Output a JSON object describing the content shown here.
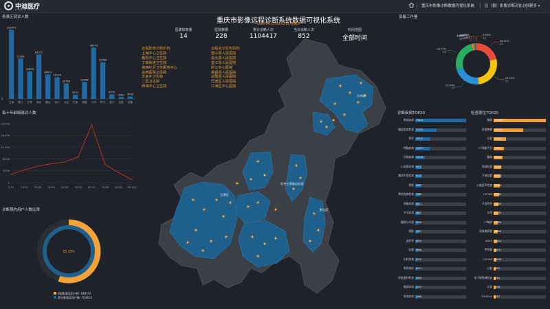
{
  "header": {
    "logo_text": "中迪医疗",
    "logo_sub": "ZHONGDI MEDICAL",
    "nav_link_1": "重庆市影像诊断数据可视化系统",
    "nav_link_2": "区（县）影像诊断对比分析",
    "more_label": "更多",
    "colors": {
      "bar": "#26292f"
    }
  },
  "district_panel": {
    "title": "各县区就诊人数",
    "ytick": "0",
    "values": [
      133047,
      77591,
      52823,
      85372,
      46973,
      41524,
      29758,
      8137,
      32598,
      98579,
      70564,
      8575,
      3560,
      4500
    ],
    "labels": [
      "江津",
      "綦江",
      "长寿",
      "渝北",
      "璧山",
      "合川",
      "大足",
      "巴南",
      "荣昌",
      "万州",
      "黔江",
      "垫江",
      "忠县",
      "武隆"
    ]
  },
  "age_panel": {
    "title": "每十年龄段就诊人数",
    "ticks": [
      "20,000",
      "16,000",
      "12,000",
      "8,000",
      "4,000",
      "0"
    ],
    "categories": [
      "0-10",
      "10-20",
      "20-30",
      "30-40",
      "40-50",
      "50-60",
      "60-70",
      "70-80",
      "80-90",
      "90-100"
    ],
    "values": [
      2800,
      4300,
      5600,
      6400,
      7000,
      8700,
      19500,
      6200,
      3400,
      1000
    ]
  },
  "donut_panel": {
    "title": "诊断预约用户人数比率",
    "center_label": "55.33%",
    "legend": [
      "B超影像类用户数: 188752",
      "累计影像类用户数: 704414"
    ],
    "percent": 55.33,
    "colors": {
      "outer": "#f2a23a",
      "inner": "#1f5f8b"
    }
  },
  "center": {
    "title": "重庆市影像远程诊断系统数据可视化系统",
    "datetime": "2020-06-12 14:02:05 星期三",
    "stats": [
      {
        "label": "医联体数量",
        "value": "14"
      },
      {
        "label": "医院数量",
        "value": "228"
      },
      {
        "label": "累计诊断人次",
        "value": "1104417"
      },
      {
        "label": "当日诊断人次",
        "value": "852"
      },
      {
        "label": "时间范围",
        "value": "全部时间"
      }
    ],
    "hospitals_left": [
      "远程影像诊断机构",
      "上海中心卫生院",
      "鑫阳中心卫生院",
      "丁家街道卫生院",
      "城西社区卫生服务中心",
      "渝西医院卫生院",
      "文家乡卫生院",
      "二圣卫生院",
      "西城中心卫生院"
    ],
    "hospitals_right": [
      "远程会诊机构机构",
      "璧山县人民医院",
      "渝北县人民医院",
      "垫江县人民医院",
      "黔江中心医院",
      "荣昌县人民医院",
      "武隆县人民医院",
      "巴南区人民医院",
      "江津区中心医院"
    ],
    "map_labels": [
      "万州区",
      "黔江区",
      "石柱土家族自治县",
      "江津区"
    ]
  },
  "equipment_panel": {
    "title": "设备工作量",
    "slices": [
      {
        "label": "DX",
        "pct": "20.01%",
        "value": 20.01,
        "color": "#e74c3c"
      },
      {
        "label": "DR",
        "pct": "25.45%",
        "value": 25.45,
        "color": "#f1c40f"
      },
      {
        "label": "CT",
        "pct": "20.99%",
        "value": 20.99,
        "color": "#2b8fd6"
      },
      {
        "label": "MR",
        "pct": "23.77%",
        "value": 23.77,
        "color": "#27ae60"
      },
      {
        "label": "MG",
        "pct": "0.2%",
        "value": 0.2,
        "color": "#8e44ad"
      },
      {
        "label": "US",
        "pct": "1.66%",
        "value": 1.66,
        "color": "#e67e22"
      },
      {
        "label": "ES",
        "pct": "1.36%",
        "value": 1.36,
        "color": "#16a085"
      },
      {
        "label": "OTH",
        "pct": "0.79%",
        "value": 0.79,
        "color": "#c0392b"
      },
      {
        "label": "XA",
        "pct": "0.04%",
        "value": 0.04,
        "color": "#d35400"
      }
    ]
  },
  "diag_top20": {
    "title": "诊断疾病TOP20",
    "items": [
      {
        "label": "肺部疾病",
        "value": 75453
      },
      {
        "label": "腹部疾病检查",
        "value": 31528
      },
      {
        "label": "骨折",
        "value": 22531
      },
      {
        "label": "颅脑疾病",
        "value": 20953
      },
      {
        "label": "肝胆疾病",
        "value": 13978
      },
      {
        "label": "心血管疾病",
        "value": 9470
      },
      {
        "label": "胸部炎症疾病",
        "value": 9128
      },
      {
        "label": "胃肠",
        "value": 8631
      },
      {
        "label": "脊柱疾病检查",
        "value": 7560
      },
      {
        "label": "颈椎疾病",
        "value": 6521
      },
      {
        "label": "关节疾病",
        "value": 5802
      },
      {
        "label": "腰椎与间盘",
        "value": 5330
      },
      {
        "label": "肾脏",
        "value": 4992
      },
      {
        "label": "泌尿系",
        "value": 4530
      },
      {
        "label": "乳腺",
        "value": 3988
      },
      {
        "label": "妇科疾病",
        "value": 3510
      },
      {
        "label": "骨质疏松",
        "value": 3021
      },
      {
        "label": "肝脏囊肿检查",
        "value": 2600
      },
      {
        "label": "脑部疾病",
        "value": 2253
      },
      {
        "label": "其他疾病",
        "value": 1988
      }
    ]
  },
  "check_top20": {
    "title": "检查部位TOP20",
    "items": [
      {
        "label": "胸部",
        "value": 225148
      },
      {
        "label": "肝胆脾胰",
        "value": 127322
      },
      {
        "label": "头部",
        "value": 52548
      },
      {
        "label": "CT颅脑平扫",
        "value": 43210
      },
      {
        "label": "腹部",
        "value": 38652
      },
      {
        "label": "颈部血管",
        "value": 31285
      },
      {
        "label": "下肢血管",
        "value": 29001
      },
      {
        "label": "心脏超声检查",
        "value": 27004
      },
      {
        "label": "LSPINE",
        "value": 23180
      },
      {
        "label": "子宫附件",
        "value": 21500
      },
      {
        "label": "头颅",
        "value": 19532
      },
      {
        "label": "CT胸部",
        "value": 17800
      },
      {
        "label": "双肾输尿管",
        "value": 16542
      },
      {
        "label": "KNEE",
        "value": 14003
      },
      {
        "label": "甲状腺",
        "value": 12611
      },
      {
        "label": "CSPINE",
        "value": 11008
      },
      {
        "label": "心脏",
        "value": 9925
      },
      {
        "label": "电子胃肠镜检查",
        "value": 8700
      },
      {
        "label": "头部",
        "value": 7458
      },
      {
        "label": "THORAX",
        "value": 6302
      }
    ]
  }
}
